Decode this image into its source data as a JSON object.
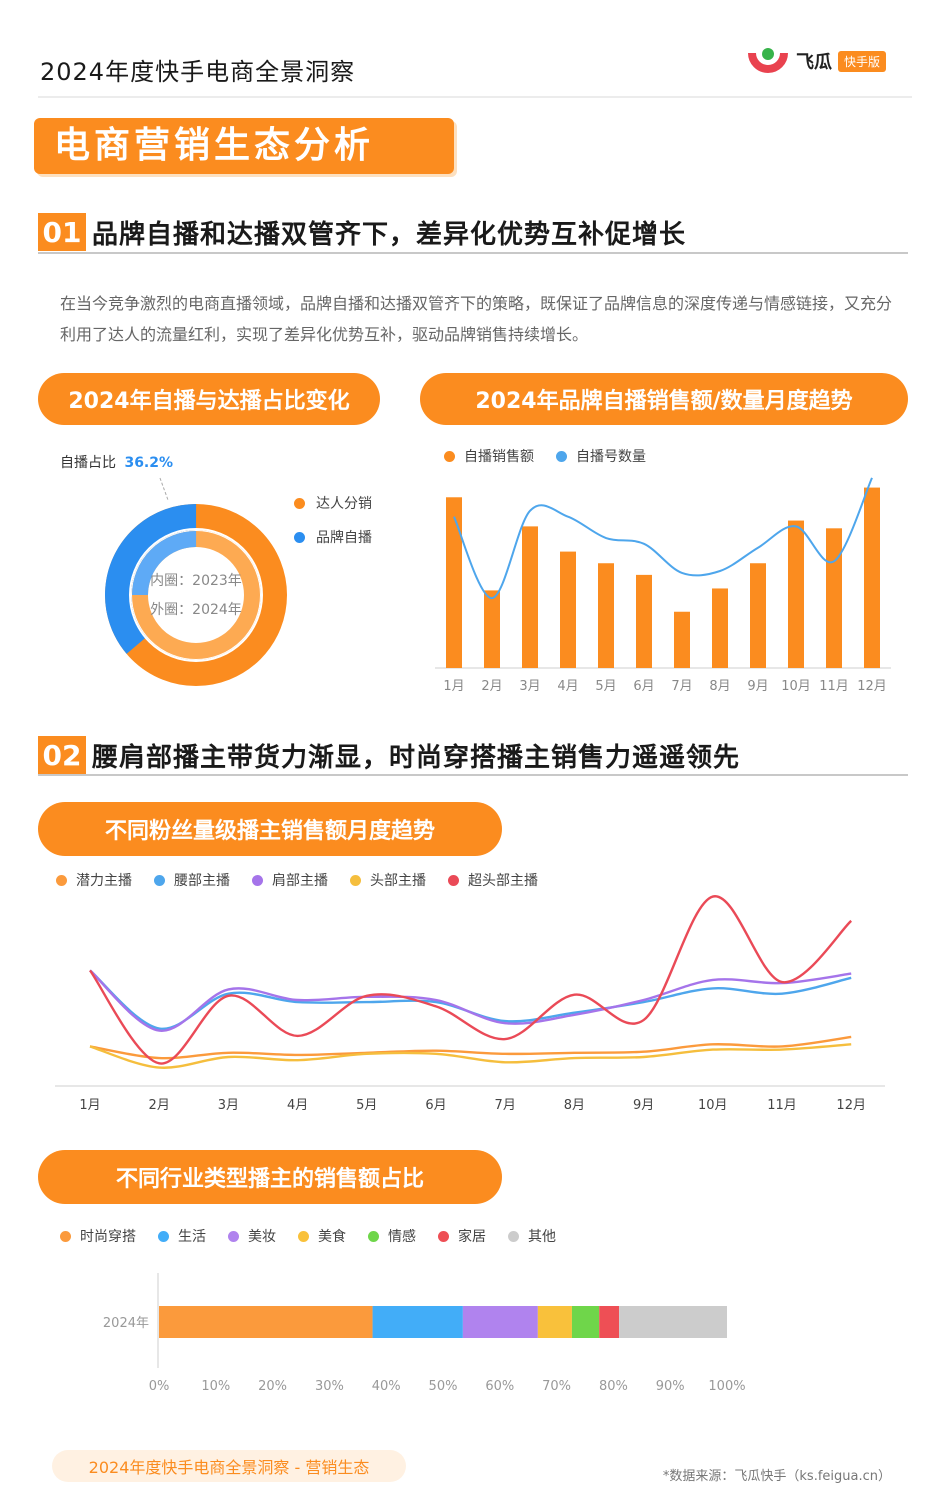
{
  "header": {
    "title": "2024年度快手电商全景洞察",
    "logo_text": "飞瓜",
    "logo_badge": "快手版"
  },
  "banner": "电商营销生态分析",
  "section1": {
    "num": "01",
    "title": "品牌自播和达播双管齐下，差异化优势互补促增长",
    "paragraph": "在当今竞争激烈的电商直播领域，品牌自播和达播双管齐下的策略，既保证了品牌信息的深度传递与情感链接，又充分利用了达人的流量红利，实现了差异化优势互补，驱动品牌销售持续增长。"
  },
  "donut": {
    "pill": "2024年自播与达播占比变化",
    "callout_label": "自播占比",
    "callout_value": "36.2%",
    "inner_label": "内圈：2023年",
    "outer_label": "外圈：2024年",
    "legend": [
      {
        "name": "达人分销",
        "color": "#fb8c1f"
      },
      {
        "name": "品牌自播",
        "color": "#2b8ef0"
      }
    ],
    "colors": {
      "outer_a": "#fb8c1f",
      "outer_b": "#2b8ef0",
      "inner_a": "#fdaa52",
      "inner_b": "#5eaaf6"
    }
  },
  "chart_data": [
    {
      "type": "bar",
      "title": "2024年品牌自播销售额/数量月度趋势",
      "categories": [
        "1月",
        "2月",
        "3月",
        "4月",
        "5月",
        "6月",
        "7月",
        "8月",
        "9月",
        "10月",
        "11月",
        "12月"
      ],
      "series": [
        {
          "name": "自播销售额",
          "chart": "bar",
          "color": "#fb8c1f",
          "values": [
            88,
            40,
            73,
            60,
            54,
            48,
            29,
            41,
            54,
            76,
            72,
            93
          ]
        },
        {
          "name": "自播号数量",
          "chart": "line",
          "color": "#4ea6ec",
          "values": [
            78,
            36,
            81,
            78,
            67,
            64,
            49,
            50,
            62,
            73,
            55,
            98
          ]
        }
      ],
      "ylim": [
        0,
        100
      ]
    },
    {
      "type": "line",
      "title": "不同粉丝量级播主销售额月度趋势",
      "categories": [
        "1月",
        "2月",
        "3月",
        "4月",
        "5月",
        "6月",
        "7月",
        "8月",
        "9月",
        "10月",
        "11月",
        "12月"
      ],
      "series": [
        {
          "name": "潜力主播",
          "color": "#fb9a3c",
          "values": [
            28,
            17,
            22,
            20,
            22,
            24,
            21,
            22,
            23,
            30,
            28,
            37
          ]
        },
        {
          "name": "腰部主播",
          "color": "#4ea6ec",
          "values": [
            100,
            45,
            78,
            70,
            70,
            70,
            52,
            60,
            70,
            83,
            78,
            93
          ]
        },
        {
          "name": "肩部主播",
          "color": "#a574ea",
          "values": [
            100,
            43,
            82,
            72,
            75,
            72,
            50,
            58,
            72,
            91,
            88,
            97
          ]
        },
        {
          "name": "头部主播",
          "color": "#f5be3d",
          "values": [
            28,
            8,
            18,
            15,
            21,
            21,
            13,
            17,
            18,
            25,
            25,
            30
          ]
        },
        {
          "name": "超头部主播",
          "color": "#ea4a57",
          "values": [
            100,
            12,
            76,
            38,
            76,
            66,
            35,
            77,
            53,
            170,
            89,
            147
          ]
        }
      ],
      "ylim": [
        0,
        180
      ]
    },
    {
      "type": "bar",
      "orientation": "horizontal",
      "stacked": true,
      "title": "不同行业类型播主的销售额占比",
      "categories": [
        "2024年"
      ],
      "series": [
        {
          "name": "时尚穿搭",
          "color": "#fb9a3c",
          "values": [
            37.6
          ]
        },
        {
          "name": "生活",
          "color": "#42adf8",
          "values": [
            15.9
          ]
        },
        {
          "name": "美妆",
          "color": "#b083ee",
          "values": [
            13.2
          ]
        },
        {
          "name": "美食",
          "color": "#f9c13b",
          "values": [
            6.0
          ]
        },
        {
          "name": "情感",
          "color": "#6fd64a",
          "values": [
            4.8
          ]
        },
        {
          "name": "家居",
          "color": "#ee4f55",
          "values": [
            3.5
          ]
        },
        {
          "name": "其他",
          "color": "#cccccc",
          "values": [
            19.0
          ]
        }
      ],
      "xticks": [
        "0%",
        "10%",
        "20%",
        "30%",
        "40%",
        "50%",
        "60%",
        "70%",
        "80%",
        "90%",
        "100%"
      ],
      "xlim": [
        0,
        100
      ]
    }
  ],
  "bar_chart": {
    "pill": "2024年品牌自播销售额/数量月度趋势",
    "legend": [
      {
        "name": "自播销售额",
        "color": "#fb8c1f"
      },
      {
        "name": "自播号数量",
        "color": "#4ea6ec"
      }
    ]
  },
  "section2": {
    "num": "02",
    "title": "腰肩部播主带货力渐显，时尚穿搭播主销售力遥遥领先"
  },
  "line_chart": {
    "pill": "不同粉丝量级播主销售额月度趋势",
    "legend": [
      {
        "name": "潜力主播",
        "color": "#fb9a3c"
      },
      {
        "name": "腰部主播",
        "color": "#4ea6ec"
      },
      {
        "name": "肩部主播",
        "color": "#a574ea"
      },
      {
        "name": "头部主播",
        "color": "#f5be3d"
      },
      {
        "name": "超头部主播",
        "color": "#ea4a57"
      }
    ]
  },
  "stack_chart": {
    "pill": "不同行业类型播主的销售额占比",
    "legend": [
      {
        "name": "时尚穿搭",
        "color": "#fb9a3c"
      },
      {
        "name": "生活",
        "color": "#42adf8"
      },
      {
        "name": "美妆",
        "color": "#b083ee"
      },
      {
        "name": "美食",
        "color": "#f9c13b"
      },
      {
        "name": "情感",
        "color": "#6fd64a"
      },
      {
        "name": "家居",
        "color": "#ee4f55"
      },
      {
        "name": "其他",
        "color": "#cccccc"
      }
    ]
  },
  "footer": {
    "pill": "2024年度快手电商全景洞察 - 营销生态",
    "source": "*数据来源：飞瓜快手（ks.feigua.cn）"
  }
}
